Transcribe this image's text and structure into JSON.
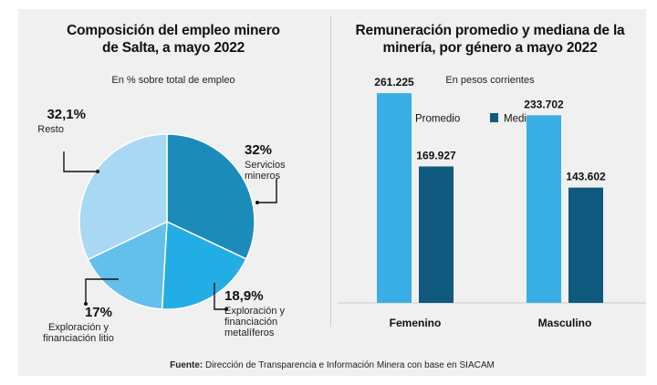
{
  "source": {
    "label": "Fuente:",
    "text": " Dirección de Transparencia e Información Minera con base en SIACAM"
  },
  "chart_data": [
    {
      "type": "pie",
      "title_line1": "Composición del empleo minero",
      "title_line2": "de Salta, a mayo 2022",
      "subtitle": "En % sobre total de empleo",
      "slices": [
        {
          "value": 32,
          "label_pct": "32%",
          "label_lines": [
            "Servicios",
            "mineros"
          ],
          "color": "#1b8cba"
        },
        {
          "value": 18.9,
          "label_pct": "18,9%",
          "label_lines": [
            "Exploración y",
            "financiación",
            "metalíferos"
          ],
          "color": "#22aee5"
        },
        {
          "value": 17,
          "label_pct": "17%",
          "label_lines": [
            "Exploración y",
            "financiación litio"
          ],
          "color": "#63c0ec"
        },
        {
          "value": 32.1,
          "label_pct": "32,1%",
          "label_lines": [
            "Resto"
          ],
          "color": "#a8d8f4"
        }
      ]
    },
    {
      "type": "bar",
      "title_line1": "Remuneración promedio y mediana de la",
      "title_line2": "minería, por género a mayo 2022",
      "subtitle": "En pesos corrientes",
      "categories": [
        "Femenino",
        "Masculino"
      ],
      "series": [
        {
          "name": "Promedio",
          "values": [
            261225,
            233702
          ],
          "labels": [
            "261.225",
            "233.702"
          ],
          "color": "#39aee6"
        },
        {
          "name": "Mediana",
          "values": [
            169927,
            143602
          ],
          "labels": [
            "169.927",
            "143.602"
          ],
          "color": "#0f5a7e"
        }
      ],
      "ylim": [
        0,
        300000
      ],
      "legend": "top"
    }
  ]
}
